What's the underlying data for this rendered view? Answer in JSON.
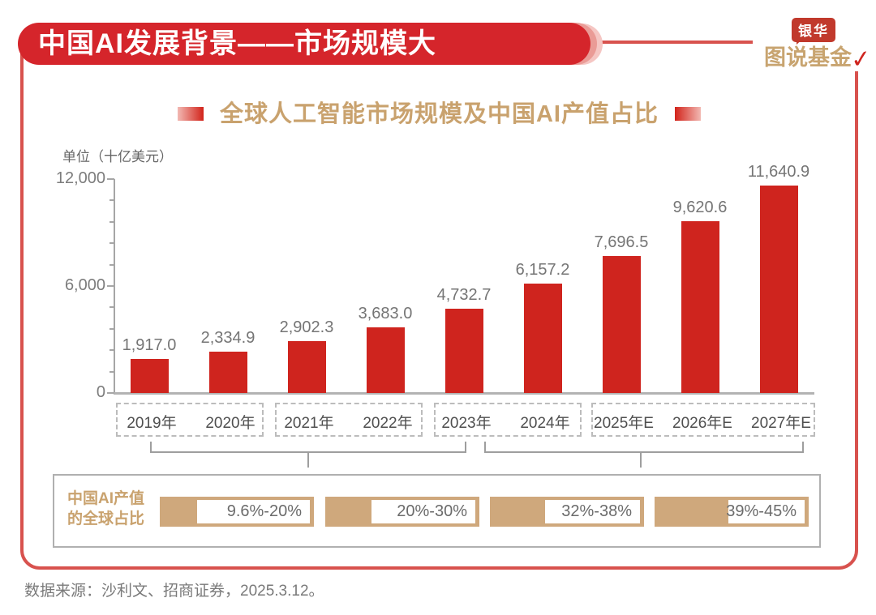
{
  "header": {
    "title": "中国AI发展背景——市场规模大",
    "banner_color": "#d5252b",
    "frame_color": "#d8524e"
  },
  "logo": {
    "badge": "银华",
    "wordmark": "图说基金",
    "check_icon": "✓",
    "badge_color": "#c1392c",
    "wordmark_color": "#c8a470"
  },
  "chart_title": {
    "text": "全球人工智能市场规模及中国AI产值占比",
    "color": "#c9a26e",
    "accent_color": "#d2231a"
  },
  "chart_data": {
    "type": "bar",
    "title": "全球人工智能市场规模及中国AI产值占比",
    "unit_label": "单位（十亿美元）",
    "categories": [
      "2019年",
      "2020年",
      "2021年",
      "2022年",
      "2023年",
      "2024年",
      "2025年E",
      "2026年E",
      "2027年E"
    ],
    "values": [
      1917.0,
      2334.9,
      2902.3,
      3683.0,
      4732.7,
      6157.2,
      7696.5,
      9620.6,
      11640.9
    ],
    "value_labels": [
      "1,917.0",
      "2,334.9",
      "2,902.3",
      "3,683.0",
      "4,732.7",
      "6,157.2",
      "7,696.5",
      "9,620.6",
      "11,640.9"
    ],
    "ylim": [
      0,
      12000
    ],
    "yticks": [
      0,
      6000,
      12000
    ],
    "ytick_labels": [
      "0",
      "6,000",
      "12,000"
    ],
    "minor_tick_step": 1200,
    "bar_color": "#cf241e",
    "grid": false,
    "legend": null,
    "category_groups": [
      [
        "2019年",
        "2020年"
      ],
      [
        "2021年",
        "2022年"
      ],
      [
        "2023年",
        "2024年"
      ],
      [
        "2025年E",
        "2026年E",
        "2027年E"
      ]
    ],
    "share_caption": {
      "label_line1": "中国AI产值",
      "label_line2": "的全球占比",
      "ranges": [
        "9.6%-20%",
        "20%-30%",
        "32%-38%",
        "39%-45%"
      ],
      "fill_fractions": [
        0.24,
        0.3,
        0.36,
        0.48
      ],
      "fill_color": "#cfa87c"
    }
  },
  "footer": {
    "source": "数据来源：沙利文、招商证券，2025.3.12。"
  }
}
